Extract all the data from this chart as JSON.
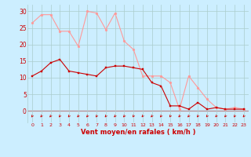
{
  "hours": [
    0,
    1,
    2,
    3,
    4,
    5,
    6,
    7,
    8,
    9,
    10,
    11,
    12,
    13,
    14,
    15,
    16,
    17,
    18,
    19,
    20,
    21,
    22,
    23
  ],
  "wind_avg": [
    10.5,
    12,
    14.5,
    15.5,
    12,
    11.5,
    11,
    10.5,
    13,
    13.5,
    13.5,
    13,
    12.5,
    8.5,
    7.5,
    1.5,
    1.5,
    0.5,
    2.5,
    0.5,
    1,
    0.5,
    0.5,
    0.5
  ],
  "wind_gust": [
    26.5,
    29,
    29,
    24,
    24,
    19.5,
    30,
    29.5,
    24.5,
    29.5,
    21,
    18.5,
    10.5,
    10.5,
    10.5,
    8.5,
    0.5,
    10.5,
    7,
    3.5,
    1,
    0.5,
    1,
    0.5
  ],
  "avg_color": "#cc0000",
  "gust_color": "#ff9999",
  "bg_color": "#cceeff",
  "grid_color": "#aacccc",
  "xlabel": "Vent moyen/en rafales ( km/h )",
  "yticks": [
    0,
    5,
    10,
    15,
    20,
    25,
    30
  ],
  "ylim": [
    -3.5,
    32
  ],
  "xlim": [
    -0.5,
    23.5
  ]
}
